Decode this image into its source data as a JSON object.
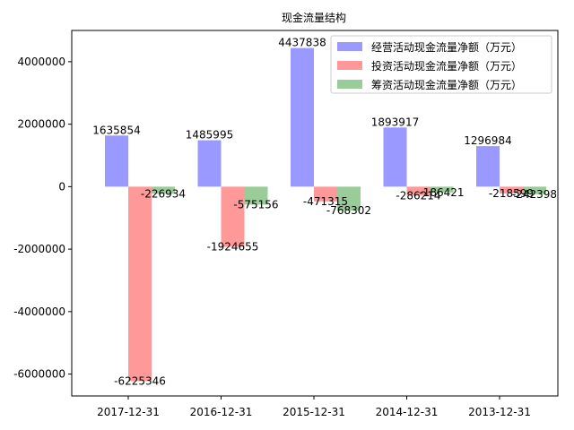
{
  "chart_data": {
    "type": "bar",
    "title": "现金流量结构",
    "categories": [
      "2017-12-31",
      "2016-12-31",
      "2015-12-31",
      "2014-12-31",
      "2013-12-31"
    ],
    "series": [
      {
        "name": "经营活动现金流量净额（万元）",
        "color": "#9999ff",
        "values": [
          1635854,
          1485995,
          4437838,
          1893917,
          1296984
        ]
      },
      {
        "name": "投资活动现金流量净额（万元）",
        "color": "#ff9999",
        "values": [
          -6225346,
          -1924655,
          -471315,
          -286214,
          -218599
        ]
      },
      {
        "name": "筹资活动现金流量净额（万元）",
        "color": "#99cc99",
        "values": [
          -226934,
          -575156,
          -768302,
          -186421,
          -242398
        ]
      }
    ],
    "ylim": [
      -6700000,
      5000000
    ],
    "yticks": [
      -6000000,
      -4000000,
      -2000000,
      0,
      2000000,
      4000000
    ],
    "legend_position": "top-right",
    "grid": false
  }
}
